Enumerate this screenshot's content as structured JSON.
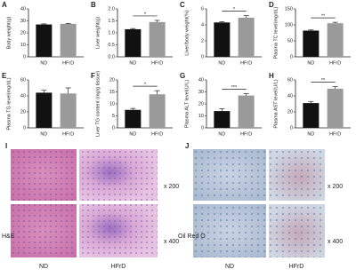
{
  "chart_data": [
    {
      "type": "bar",
      "panel": "A",
      "ylabel": "Body weight(g)",
      "categories": [
        "ND",
        "HFrD"
      ],
      "values": [
        27,
        27.5
      ],
      "errors": [
        0.5,
        0.4
      ],
      "colors": [
        "#111111",
        "#9a9a9a"
      ],
      "ylim": [
        0,
        40
      ],
      "yticks": [
        0,
        10,
        20,
        30,
        40
      ]
    },
    {
      "type": "bar",
      "panel": "B",
      "ylabel": "Liver weight(g)",
      "categories": [
        "ND",
        "HFrD"
      ],
      "values": [
        1.15,
        1.45
      ],
      "errors": [
        0.03,
        0.07
      ],
      "colors": [
        "#111111",
        "#9a9a9a"
      ],
      "ylim": [
        0,
        2
      ],
      "yticks": [
        {
          "value": 0,
          "label": "0.0"
        },
        0.5,
        {
          "value": 1,
          "label": "1.0"
        },
        1.5,
        {
          "value": 2,
          "label": "2.0"
        }
      ],
      "annotation": "*"
    },
    {
      "type": "bar",
      "panel": "C",
      "ylabel": "Liver/body weight(%)",
      "categories": [
        "ND",
        "HFrD"
      ],
      "values": [
        4.3,
        4.9
      ],
      "errors": [
        0.1,
        0.25
      ],
      "colors": [
        "#111111",
        "#9a9a9a"
      ],
      "ylim": [
        0,
        6
      ],
      "yticks": [
        0,
        2,
        4,
        6
      ],
      "annotation": "*"
    },
    {
      "type": "bar",
      "panel": "D",
      "ylabel": "Plasma TC level(mg/dL)",
      "categories": [
        "ND",
        "HFrD"
      ],
      "values": [
        82,
        105
      ],
      "errors": [
        2,
        3
      ],
      "colors": [
        "#111111",
        "#9a9a9a"
      ],
      "ylim": [
        0,
        150
      ],
      "yticks": [
        0,
        50,
        100,
        150
      ],
      "annotation": "**"
    },
    {
      "type": "bar",
      "panel": "E",
      "ylabel": "Plasma TG level(mg/dL)",
      "categories": [
        "ND",
        "HFrD"
      ],
      "values": [
        44,
        43
      ],
      "errors": [
        3,
        7
      ],
      "colors": [
        "#111111",
        "#9a9a9a"
      ],
      "ylim": [
        0,
        60
      ],
      "yticks": [
        0,
        20,
        40,
        60
      ]
    },
    {
      "type": "bar",
      "panel": "F",
      "ylabel": "Liver TG content (mg/g tissue)",
      "categories": [
        "ND",
        "HFrD"
      ],
      "values": [
        7.5,
        14
      ],
      "errors": [
        0.6,
        1.5
      ],
      "colors": [
        "#111111",
        "#9a9a9a"
      ],
      "ylim": [
        0,
        20
      ],
      "yticks": [
        0,
        5,
        10,
        15,
        20
      ],
      "annotation": "*"
    },
    {
      "type": "bar",
      "panel": "G",
      "ylabel": "Plasma ALT level(U/L)",
      "categories": [
        "ND",
        "HFrD"
      ],
      "values": [
        14,
        27
      ],
      "errors": [
        2,
        1.5
      ],
      "colors": [
        "#111111",
        "#9a9a9a"
      ],
      "ylim": [
        0,
        40
      ],
      "yticks": [
        0,
        10,
        20,
        30,
        40
      ],
      "annotation": "***"
    },
    {
      "type": "bar",
      "panel": "H",
      "ylabel": "Plasma AST level(U/L)",
      "categories": [
        "ND",
        "HFrD"
      ],
      "values": [
        31,
        49
      ],
      "errors": [
        2,
        2.5
      ],
      "colors": [
        "#111111",
        "#9a9a9a"
      ],
      "ylim": [
        0,
        60
      ],
      "yticks": [
        0,
        20,
        40,
        60
      ],
      "annotation": "**"
    }
  ],
  "image_panels": [
    {
      "letter": "I",
      "stain": "H&E",
      "columns": [
        "ND",
        "HFrD"
      ],
      "magnifications": [
        "x 200",
        "x 400"
      ]
    },
    {
      "letter": "J",
      "stain": "Oil Red O",
      "columns": [
        "ND",
        "HFrD"
      ],
      "magnifications": [
        "x 200",
        "x 400"
      ]
    }
  ]
}
